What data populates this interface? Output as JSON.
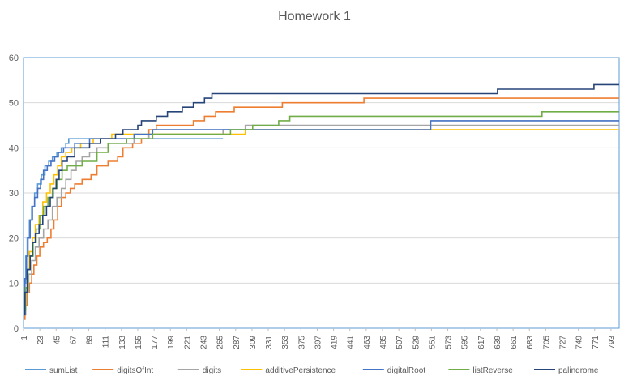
{
  "chart_data": {
    "type": "line",
    "title": "Homework 1",
    "xlabel": "",
    "ylabel": "",
    "xlim": [
      1,
      804
    ],
    "ylim": [
      0,
      60
    ],
    "y_ticks": [
      0,
      10,
      20,
      30,
      40,
      50,
      60
    ],
    "x_ticks": [
      1,
      23,
      45,
      67,
      89,
      111,
      133,
      155,
      177,
      199,
      221,
      243,
      265,
      287,
      309,
      331,
      353,
      375,
      397,
      419,
      441,
      463,
      485,
      507,
      529,
      551,
      573,
      595,
      617,
      639,
      661,
      683,
      705,
      727,
      749,
      771,
      793
    ],
    "grid": "horizontal",
    "legend": "bottom",
    "step": true,
    "series": [
      {
        "name": "sumList",
        "color": "#5B9BD5",
        "points": [
          [
            1,
            4
          ],
          [
            2,
            10
          ],
          [
            4,
            16
          ],
          [
            6,
            20
          ],
          [
            9,
            24
          ],
          [
            12,
            27
          ],
          [
            16,
            30
          ],
          [
            20,
            32
          ],
          [
            25,
            34
          ],
          [
            30,
            36
          ],
          [
            35,
            37
          ],
          [
            40,
            38
          ],
          [
            46,
            39
          ],
          [
            52,
            40
          ],
          [
            58,
            41
          ],
          [
            62,
            42
          ],
          [
            270,
            42
          ]
        ]
      },
      {
        "name": "digitsOfInt",
        "color": "#ED7D31",
        "points": [
          [
            1,
            2
          ],
          [
            3,
            5
          ],
          [
            6,
            8
          ],
          [
            9,
            10
          ],
          [
            12,
            12
          ],
          [
            15,
            14
          ],
          [
            19,
            16
          ],
          [
            23,
            18
          ],
          [
            28,
            19
          ],
          [
            33,
            20
          ],
          [
            38,
            22
          ],
          [
            42,
            24
          ],
          [
            47,
            27
          ],
          [
            52,
            29
          ],
          [
            58,
            30
          ],
          [
            64,
            31
          ],
          [
            70,
            32
          ],
          [
            80,
            33
          ],
          [
            92,
            34
          ],
          [
            100,
            36
          ],
          [
            115,
            37
          ],
          [
            128,
            38
          ],
          [
            135,
            40
          ],
          [
            148,
            41
          ],
          [
            160,
            42
          ],
          [
            170,
            44
          ],
          [
            180,
            45
          ],
          [
            230,
            46
          ],
          [
            245,
            47
          ],
          [
            260,
            48
          ],
          [
            285,
            49
          ],
          [
            350,
            50
          ],
          [
            460,
            51
          ],
          [
            804,
            51
          ]
        ]
      },
      {
        "name": "digits",
        "color": "#A5A5A5",
        "points": [
          [
            1,
            3
          ],
          [
            4,
            8
          ],
          [
            8,
            12
          ],
          [
            12,
            15
          ],
          [
            17,
            18
          ],
          [
            22,
            20
          ],
          [
            28,
            22
          ],
          [
            34,
            24
          ],
          [
            40,
            27
          ],
          [
            46,
            29
          ],
          [
            52,
            31
          ],
          [
            58,
            33
          ],
          [
            65,
            35
          ],
          [
            72,
            37
          ],
          [
            80,
            38
          ],
          [
            90,
            39
          ],
          [
            100,
            40
          ],
          [
            115,
            41
          ],
          [
            150,
            42
          ],
          [
            170,
            43
          ],
          [
            270,
            44
          ],
          [
            300,
            45
          ],
          [
            804,
            45
          ]
        ]
      },
      {
        "name": "additivePersistence",
        "color": "#FFC000",
        "points": [
          [
            1,
            4
          ],
          [
            3,
            9
          ],
          [
            6,
            13
          ],
          [
            9,
            17
          ],
          [
            13,
            20
          ],
          [
            17,
            23
          ],
          [
            22,
            25
          ],
          [
            27,
            28
          ],
          [
            32,
            30
          ],
          [
            37,
            32
          ],
          [
            42,
            34
          ],
          [
            47,
            36
          ],
          [
            52,
            38
          ],
          [
            58,
            39
          ],
          [
            66,
            40
          ],
          [
            78,
            41
          ],
          [
            95,
            42
          ],
          [
            120,
            43
          ],
          [
            300,
            44
          ],
          [
            804,
            44
          ]
        ]
      },
      {
        "name": "digitalRoot",
        "color": "#4472C4",
        "points": [
          [
            1,
            5
          ],
          [
            3,
            11
          ],
          [
            5,
            16
          ],
          [
            7,
            20
          ],
          [
            10,
            24
          ],
          [
            13,
            27
          ],
          [
            16,
            29
          ],
          [
            20,
            31
          ],
          [
            24,
            33
          ],
          [
            28,
            35
          ],
          [
            33,
            36
          ],
          [
            38,
            37
          ],
          [
            43,
            38
          ],
          [
            48,
            39
          ],
          [
            55,
            40
          ],
          [
            70,
            41
          ],
          [
            90,
            42
          ],
          [
            150,
            43
          ],
          [
            175,
            44
          ],
          [
            550,
            46
          ],
          [
            804,
            46
          ]
        ]
      },
      {
        "name": "listReverse",
        "color": "#70AD47",
        "points": [
          [
            1,
            4
          ],
          [
            4,
            9
          ],
          [
            7,
            13
          ],
          [
            10,
            16
          ],
          [
            14,
            19
          ],
          [
            18,
            22
          ],
          [
            23,
            25
          ],
          [
            28,
            27
          ],
          [
            34,
            29
          ],
          [
            40,
            31
          ],
          [
            46,
            33
          ],
          [
            53,
            35
          ],
          [
            60,
            36
          ],
          [
            80,
            37
          ],
          [
            100,
            39
          ],
          [
            115,
            41
          ],
          [
            140,
            42
          ],
          [
            175,
            43
          ],
          [
            280,
            44
          ],
          [
            310,
            45
          ],
          [
            345,
            46
          ],
          [
            360,
            47
          ],
          [
            700,
            48
          ],
          [
            804,
            48
          ]
        ]
      },
      {
        "name": "palindrome",
        "color": "#264478",
        "points": [
          [
            1,
            3
          ],
          [
            3,
            8
          ],
          [
            6,
            13
          ],
          [
            10,
            16
          ],
          [
            13,
            19
          ],
          [
            17,
            21
          ],
          [
            22,
            23
          ],
          [
            27,
            25
          ],
          [
            32,
            27
          ],
          [
            37,
            29
          ],
          [
            41,
            31
          ],
          [
            45,
            33
          ],
          [
            49,
            35
          ],
          [
            53,
            37
          ],
          [
            60,
            38
          ],
          [
            70,
            40
          ],
          [
            90,
            41
          ],
          [
            105,
            42
          ],
          [
            125,
            43
          ],
          [
            135,
            44
          ],
          [
            155,
            45
          ],
          [
            160,
            46
          ],
          [
            180,
            47
          ],
          [
            195,
            48
          ],
          [
            215,
            49
          ],
          [
            230,
            50
          ],
          [
            245,
            51
          ],
          [
            255,
            52
          ],
          [
            640,
            53
          ],
          [
            770,
            54
          ],
          [
            804,
            54
          ]
        ]
      }
    ]
  }
}
